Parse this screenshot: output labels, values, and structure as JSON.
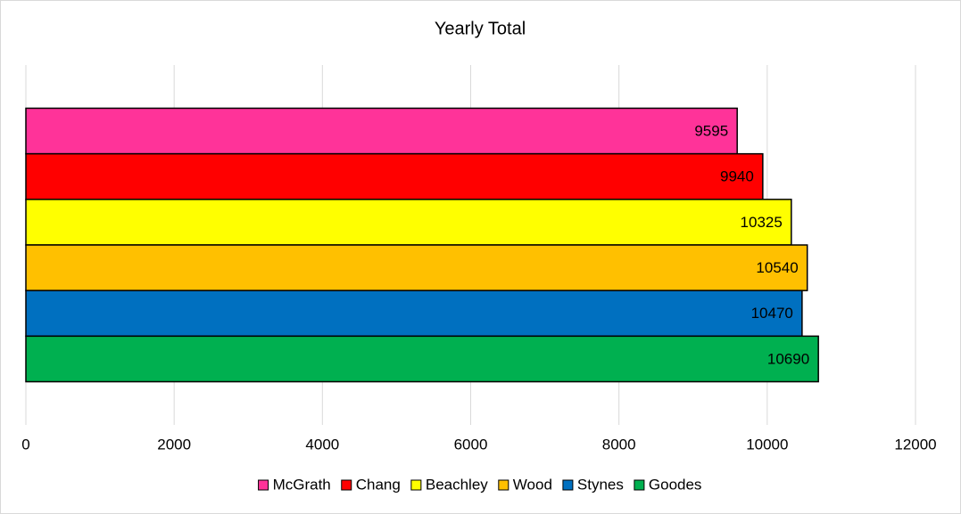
{
  "chart_data": {
    "type": "bar",
    "orientation": "horizontal",
    "title": "Yearly Total",
    "categories": [
      null
    ],
    "series": [
      {
        "name": "McGrath",
        "color": "#ff3399",
        "values": [
          9595
        ]
      },
      {
        "name": "Chang",
        "color": "#ff0000",
        "values": [
          9940
        ]
      },
      {
        "name": "Beachley",
        "color": "#ffff00",
        "values": [
          10325
        ]
      },
      {
        "name": "Wood",
        "color": "#ffc000",
        "values": [
          10540
        ]
      },
      {
        "name": "Stynes",
        "color": "#0070c0",
        "values": [
          10470
        ]
      },
      {
        "name": "Goodes",
        "color": "#00b050",
        "values": [
          10690
        ]
      }
    ],
    "xlim": [
      0,
      12000
    ],
    "xticks": [
      0,
      2000,
      4000,
      6000,
      8000,
      10000,
      12000
    ],
    "grid": true,
    "legend": "bottom",
    "data_labels": true
  }
}
